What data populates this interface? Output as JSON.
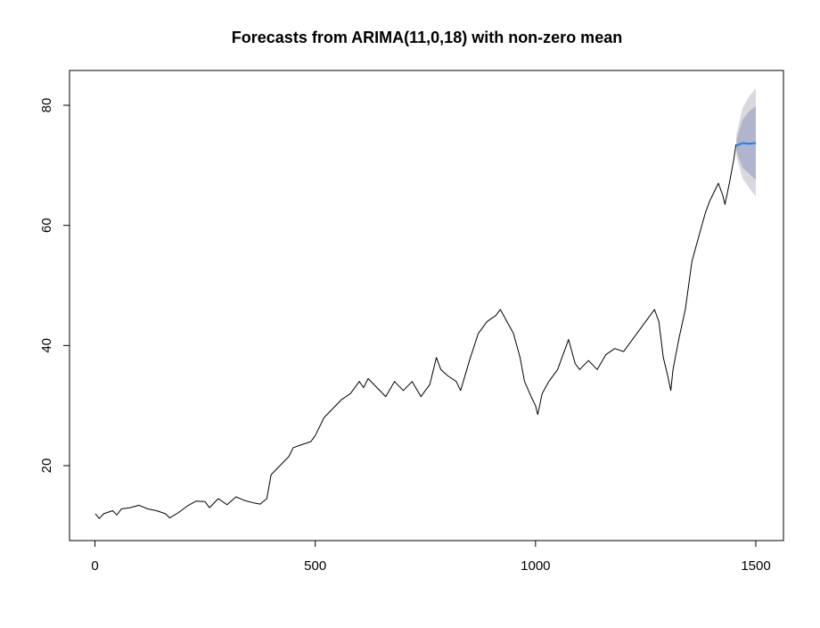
{
  "chart_data": {
    "type": "line",
    "title": "Forecasts from ARIMA(11,0,18) with non-zero mean",
    "xlabel": "",
    "ylabel": "",
    "xlim": [
      0,
      1500
    ],
    "ylim": [
      10,
      85
    ],
    "x_ticks": [
      0,
      500,
      1000,
      1500
    ],
    "y_ticks": [
      20,
      40,
      60,
      80
    ],
    "grid": false,
    "legend": "none",
    "series": [
      {
        "role": "observed",
        "color": "#000000",
        "points": [
          [
            1,
            12.0
          ],
          [
            10,
            11.2
          ],
          [
            20,
            12.0
          ],
          [
            40,
            12.5
          ],
          [
            50,
            11.8
          ],
          [
            60,
            12.8
          ],
          [
            80,
            13.0
          ],
          [
            100,
            13.4
          ],
          [
            120,
            12.8
          ],
          [
            140,
            12.5
          ],
          [
            160,
            12.0
          ],
          [
            170,
            11.3
          ],
          [
            190,
            12.2
          ],
          [
            210,
            13.3
          ],
          [
            230,
            14.1
          ],
          [
            250,
            14.0
          ],
          [
            260,
            13.0
          ],
          [
            280,
            14.5
          ],
          [
            300,
            13.5
          ],
          [
            320,
            14.8
          ],
          [
            340,
            14.2
          ],
          [
            360,
            13.8
          ],
          [
            375,
            13.6
          ],
          [
            390,
            14.5
          ],
          [
            400,
            18.5
          ],
          [
            420,
            20.0
          ],
          [
            440,
            21.5
          ],
          [
            450,
            23.0
          ],
          [
            470,
            23.5
          ],
          [
            490,
            24.0
          ],
          [
            500,
            25.0
          ],
          [
            520,
            28.0
          ],
          [
            540,
            29.5
          ],
          [
            560,
            31.0
          ],
          [
            580,
            32.0
          ],
          [
            600,
            34.0
          ],
          [
            610,
            33.0
          ],
          [
            620,
            34.5
          ],
          [
            640,
            33.0
          ],
          [
            660,
            31.5
          ],
          [
            680,
            34.0
          ],
          [
            700,
            32.5
          ],
          [
            720,
            34.0
          ],
          [
            740,
            31.5
          ],
          [
            760,
            33.5
          ],
          [
            775,
            38.0
          ],
          [
            785,
            36.0
          ],
          [
            800,
            35.0
          ],
          [
            820,
            34.0
          ],
          [
            830,
            32.5
          ],
          [
            850,
            37.5
          ],
          [
            870,
            42.0
          ],
          [
            890,
            44.0
          ],
          [
            910,
            45.0
          ],
          [
            920,
            46.0
          ],
          [
            935,
            44.0
          ],
          [
            950,
            42.0
          ],
          [
            965,
            38.0
          ],
          [
            975,
            34.0
          ],
          [
            990,
            31.5
          ],
          [
            1000,
            30.0
          ],
          [
            1005,
            28.5
          ],
          [
            1015,
            32.0
          ],
          [
            1030,
            34.0
          ],
          [
            1050,
            36.0
          ],
          [
            1060,
            38.0
          ],
          [
            1075,
            41.0
          ],
          [
            1090,
            37.0
          ],
          [
            1100,
            36.0
          ],
          [
            1120,
            37.5
          ],
          [
            1140,
            36.0
          ],
          [
            1160,
            38.5
          ],
          [
            1180,
            39.5
          ],
          [
            1200,
            39.0
          ],
          [
            1220,
            41.0
          ],
          [
            1240,
            43.0
          ],
          [
            1260,
            45.0
          ],
          [
            1270,
            46.0
          ],
          [
            1280,
            44.0
          ],
          [
            1290,
            38.0
          ],
          [
            1300,
            35.0
          ],
          [
            1307,
            32.5
          ],
          [
            1312,
            36.0
          ],
          [
            1325,
            41.0
          ],
          [
            1340,
            46.0
          ],
          [
            1355,
            54.0
          ],
          [
            1370,
            58.0
          ],
          [
            1385,
            62.0
          ],
          [
            1395,
            64.0
          ],
          [
            1405,
            65.5
          ],
          [
            1415,
            67.0
          ],
          [
            1425,
            65.0
          ],
          [
            1430,
            63.5
          ],
          [
            1440,
            67.0
          ],
          [
            1450,
            71.0
          ],
          [
            1455,
            73.5
          ]
        ]
      },
      {
        "role": "forecast",
        "color": "#1c7ef0",
        "points": [
          [
            1456,
            73.3
          ],
          [
            1470,
            73.7
          ],
          [
            1485,
            73.6
          ],
          [
            1500,
            73.7
          ]
        ]
      }
    ],
    "intervals": [
      {
        "level": 95,
        "color": "#d8d8de",
        "x": [
          1456,
          1470,
          1485,
          1500
        ],
        "lower": [
          71.5,
          67.8,
          66.2,
          64.8
        ],
        "upper": [
          75.1,
          79.6,
          81.5,
          82.8
        ]
      },
      {
        "level": 80,
        "color": "#b0b4cd",
        "x": [
          1456,
          1470,
          1485,
          1500
        ],
        "lower": [
          72.3,
          69.6,
          68.6,
          67.6
        ],
        "upper": [
          74.3,
          77.6,
          79.0,
          79.8
        ]
      }
    ]
  }
}
